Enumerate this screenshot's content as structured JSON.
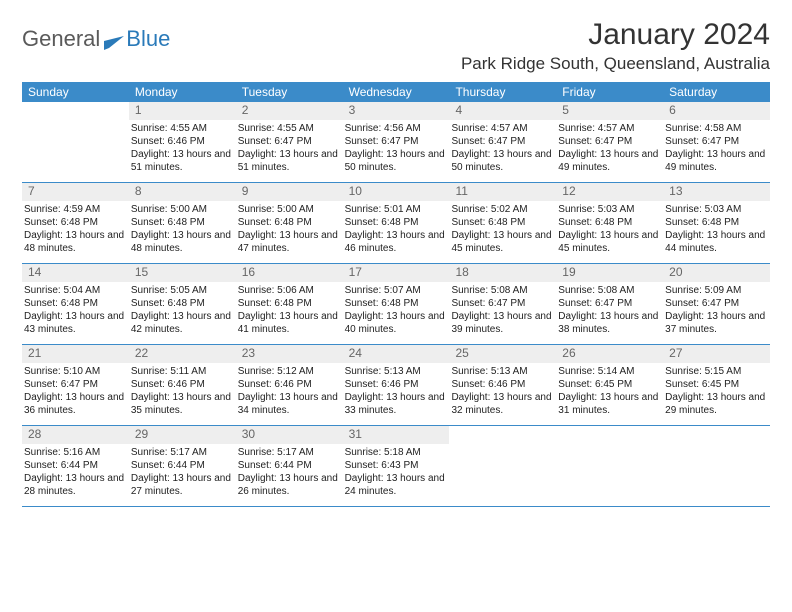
{
  "brand": {
    "part1": "General",
    "part2": "Blue"
  },
  "title": "January 2024",
  "location": "Park Ridge South, Queensland, Australia",
  "colors": {
    "header_bg": "#3b8bc9",
    "header_text": "#ffffff",
    "daynum_bg": "#eeeeee",
    "daynum_text": "#666666",
    "border": "#3b8bc9",
    "body_text": "#222222",
    "brand_gray": "#5a5a5a",
    "brand_blue": "#2a7ab9"
  },
  "dayNames": [
    "Sunday",
    "Monday",
    "Tuesday",
    "Wednesday",
    "Thursday",
    "Friday",
    "Saturday"
  ],
  "weeks": [
    [
      {
        "n": "",
        "sunrise": "",
        "sunset": "",
        "daylight": ""
      },
      {
        "n": "1",
        "sunrise": "Sunrise: 4:55 AM",
        "sunset": "Sunset: 6:46 PM",
        "daylight": "Daylight: 13 hours and 51 minutes."
      },
      {
        "n": "2",
        "sunrise": "Sunrise: 4:55 AM",
        "sunset": "Sunset: 6:47 PM",
        "daylight": "Daylight: 13 hours and 51 minutes."
      },
      {
        "n": "3",
        "sunrise": "Sunrise: 4:56 AM",
        "sunset": "Sunset: 6:47 PM",
        "daylight": "Daylight: 13 hours and 50 minutes."
      },
      {
        "n": "4",
        "sunrise": "Sunrise: 4:57 AM",
        "sunset": "Sunset: 6:47 PM",
        "daylight": "Daylight: 13 hours and 50 minutes."
      },
      {
        "n": "5",
        "sunrise": "Sunrise: 4:57 AM",
        "sunset": "Sunset: 6:47 PM",
        "daylight": "Daylight: 13 hours and 49 minutes."
      },
      {
        "n": "6",
        "sunrise": "Sunrise: 4:58 AM",
        "sunset": "Sunset: 6:47 PM",
        "daylight": "Daylight: 13 hours and 49 minutes."
      }
    ],
    [
      {
        "n": "7",
        "sunrise": "Sunrise: 4:59 AM",
        "sunset": "Sunset: 6:48 PM",
        "daylight": "Daylight: 13 hours and 48 minutes."
      },
      {
        "n": "8",
        "sunrise": "Sunrise: 5:00 AM",
        "sunset": "Sunset: 6:48 PM",
        "daylight": "Daylight: 13 hours and 48 minutes."
      },
      {
        "n": "9",
        "sunrise": "Sunrise: 5:00 AM",
        "sunset": "Sunset: 6:48 PM",
        "daylight": "Daylight: 13 hours and 47 minutes."
      },
      {
        "n": "10",
        "sunrise": "Sunrise: 5:01 AM",
        "sunset": "Sunset: 6:48 PM",
        "daylight": "Daylight: 13 hours and 46 minutes."
      },
      {
        "n": "11",
        "sunrise": "Sunrise: 5:02 AM",
        "sunset": "Sunset: 6:48 PM",
        "daylight": "Daylight: 13 hours and 45 minutes."
      },
      {
        "n": "12",
        "sunrise": "Sunrise: 5:03 AM",
        "sunset": "Sunset: 6:48 PM",
        "daylight": "Daylight: 13 hours and 45 minutes."
      },
      {
        "n": "13",
        "sunrise": "Sunrise: 5:03 AM",
        "sunset": "Sunset: 6:48 PM",
        "daylight": "Daylight: 13 hours and 44 minutes."
      }
    ],
    [
      {
        "n": "14",
        "sunrise": "Sunrise: 5:04 AM",
        "sunset": "Sunset: 6:48 PM",
        "daylight": "Daylight: 13 hours and 43 minutes."
      },
      {
        "n": "15",
        "sunrise": "Sunrise: 5:05 AM",
        "sunset": "Sunset: 6:48 PM",
        "daylight": "Daylight: 13 hours and 42 minutes."
      },
      {
        "n": "16",
        "sunrise": "Sunrise: 5:06 AM",
        "sunset": "Sunset: 6:48 PM",
        "daylight": "Daylight: 13 hours and 41 minutes."
      },
      {
        "n": "17",
        "sunrise": "Sunrise: 5:07 AM",
        "sunset": "Sunset: 6:48 PM",
        "daylight": "Daylight: 13 hours and 40 minutes."
      },
      {
        "n": "18",
        "sunrise": "Sunrise: 5:08 AM",
        "sunset": "Sunset: 6:47 PM",
        "daylight": "Daylight: 13 hours and 39 minutes."
      },
      {
        "n": "19",
        "sunrise": "Sunrise: 5:08 AM",
        "sunset": "Sunset: 6:47 PM",
        "daylight": "Daylight: 13 hours and 38 minutes."
      },
      {
        "n": "20",
        "sunrise": "Sunrise: 5:09 AM",
        "sunset": "Sunset: 6:47 PM",
        "daylight": "Daylight: 13 hours and 37 minutes."
      }
    ],
    [
      {
        "n": "21",
        "sunrise": "Sunrise: 5:10 AM",
        "sunset": "Sunset: 6:47 PM",
        "daylight": "Daylight: 13 hours and 36 minutes."
      },
      {
        "n": "22",
        "sunrise": "Sunrise: 5:11 AM",
        "sunset": "Sunset: 6:46 PM",
        "daylight": "Daylight: 13 hours and 35 minutes."
      },
      {
        "n": "23",
        "sunrise": "Sunrise: 5:12 AM",
        "sunset": "Sunset: 6:46 PM",
        "daylight": "Daylight: 13 hours and 34 minutes."
      },
      {
        "n": "24",
        "sunrise": "Sunrise: 5:13 AM",
        "sunset": "Sunset: 6:46 PM",
        "daylight": "Daylight: 13 hours and 33 minutes."
      },
      {
        "n": "25",
        "sunrise": "Sunrise: 5:13 AM",
        "sunset": "Sunset: 6:46 PM",
        "daylight": "Daylight: 13 hours and 32 minutes."
      },
      {
        "n": "26",
        "sunrise": "Sunrise: 5:14 AM",
        "sunset": "Sunset: 6:45 PM",
        "daylight": "Daylight: 13 hours and 31 minutes."
      },
      {
        "n": "27",
        "sunrise": "Sunrise: 5:15 AM",
        "sunset": "Sunset: 6:45 PM",
        "daylight": "Daylight: 13 hours and 29 minutes."
      }
    ],
    [
      {
        "n": "28",
        "sunrise": "Sunrise: 5:16 AM",
        "sunset": "Sunset: 6:44 PM",
        "daylight": "Daylight: 13 hours and 28 minutes."
      },
      {
        "n": "29",
        "sunrise": "Sunrise: 5:17 AM",
        "sunset": "Sunset: 6:44 PM",
        "daylight": "Daylight: 13 hours and 27 minutes."
      },
      {
        "n": "30",
        "sunrise": "Sunrise: 5:17 AM",
        "sunset": "Sunset: 6:44 PM",
        "daylight": "Daylight: 13 hours and 26 minutes."
      },
      {
        "n": "31",
        "sunrise": "Sunrise: 5:18 AM",
        "sunset": "Sunset: 6:43 PM",
        "daylight": "Daylight: 13 hours and 24 minutes."
      },
      {
        "n": "",
        "sunrise": "",
        "sunset": "",
        "daylight": ""
      },
      {
        "n": "",
        "sunrise": "",
        "sunset": "",
        "daylight": ""
      },
      {
        "n": "",
        "sunrise": "",
        "sunset": "",
        "daylight": ""
      }
    ]
  ]
}
